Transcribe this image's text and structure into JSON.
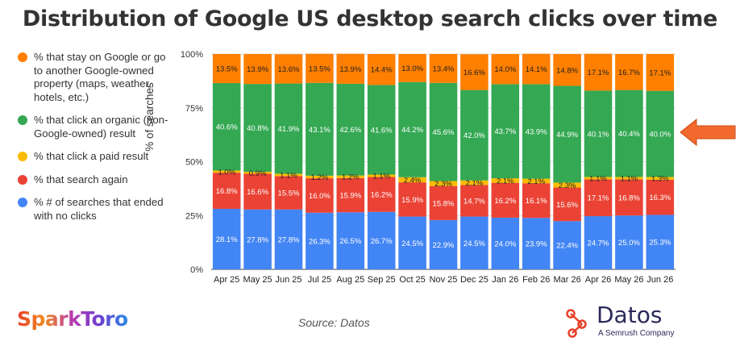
{
  "title": "Distribution of Google US desktop search clicks over time",
  "source": "Source: Datos",
  "brands": {
    "left_logo": "SparkToro",
    "right_logo": "Datos",
    "right_logo_sub": "A Semrush Company"
  },
  "legend": [
    {
      "label": "% that stay on Google or go to another Google-owned property (maps, weather, hotels, etc.)",
      "color": "#FF7F00"
    },
    {
      "label": "% that click an organic (non-Google-owned) result",
      "color": "#34A853"
    },
    {
      "label": "% that click a paid result",
      "color": "#FBBC04"
    },
    {
      "label": "% that search again",
      "color": "#EA4335"
    },
    {
      "label": "% # of searches that ended with no clicks",
      "color": "#4285F4"
    }
  ],
  "chart_data": {
    "type": "bar",
    "stacked": "percent",
    "ylabel": "% of searches",
    "ylim": [
      0,
      100
    ],
    "yticks": [
      "0%",
      "25%",
      "50%",
      "75%",
      "100%"
    ],
    "grid": true,
    "highlight": {
      "series": "% that click an organic (non-Google-owned) result",
      "marker": "orange arrow pointing at last bar"
    },
    "categories": [
      "Apr 25",
      "May 25",
      "Jun 25",
      "Jul 25",
      "Aug 25",
      "Sep 25",
      "Oct 25",
      "Nov 25",
      "Dec 25",
      "Jan 26",
      "Feb 26",
      "Mar 26",
      "Apr 26",
      "May 26",
      "Jun 26"
    ],
    "series": [
      {
        "name": "% # of searches that ended with no clicks",
        "color": "#4285F4",
        "values": [
          28.1,
          27.8,
          27.8,
          26.3,
          26.5,
          26.7,
          24.5,
          22.9,
          24.5,
          24.0,
          23.9,
          22.4,
          24.7,
          25.0,
          25.3
        ],
        "labels": [
          "28.1%",
          "27.8%",
          "27.8%",
          "26.3%",
          "26.5%",
          "26.7%",
          "24.5%",
          "22.9%",
          "24.5%",
          "24.0%",
          "23.9%",
          "22.4%",
          "24.7%",
          "25.0%",
          "25.3%"
        ]
      },
      {
        "name": "% that search again",
        "color": "#EA4335",
        "values": [
          16.8,
          16.6,
          15.5,
          16.0,
          15.9,
          16.2,
          15.9,
          15.8,
          14.7,
          16.2,
          16.1,
          15.6,
          17.1,
          16.8,
          16.3
        ],
        "labels": [
          "16.8%",
          "16.6%",
          "15.5%",
          "16.0%",
          "15.9%",
          "16.2%",
          "15.9%",
          "15.8%",
          "14.7%",
          "16.2%",
          "16.1%",
          "15.6%",
          "17.1%",
          "16.8%",
          "16.3%"
        ]
      },
      {
        "name": "% that click a paid result",
        "color": "#FBBC04",
        "values": [
          1.0,
          0.9,
          1.1,
          1.2,
          1.2,
          1.1,
          2.4,
          2.3,
          2.1,
          2.1,
          2.1,
          2.3,
          1.1,
          1.1,
          1.3
        ],
        "labels": [
          "1.0%",
          "0.9%",
          "1.1%",
          "1.2%",
          "1.2%",
          "1.1%",
          "2.4%",
          "2.3%",
          "2.1%",
          "2.1%",
          "2.1%",
          "2.3%",
          "1.1%",
          "1.1%",
          "1.3%"
        ]
      },
      {
        "name": "% that click an organic (non-Google-owned) result",
        "color": "#34A853",
        "values": [
          40.6,
          40.8,
          41.9,
          43.1,
          42.6,
          41.6,
          44.2,
          45.6,
          42.0,
          43.7,
          43.9,
          44.9,
          40.1,
          40.4,
          40.0
        ],
        "labels": [
          "40.6%",
          "40.8%",
          "41.9%",
          "43.1%",
          "42.6%",
          "41.6%",
          "44.2%",
          "45.6%",
          "42.0%",
          "43.7%",
          "43.9%",
          "44.9%",
          "40.1%",
          "40.4%",
          "40.0%"
        ]
      },
      {
        "name": "% that stay on Google or go to another Google-owned property (maps, weather, hotels, etc.)",
        "color": "#FF7F00",
        "values": [
          13.5,
          13.9,
          13.6,
          13.5,
          13.9,
          14.4,
          13.0,
          13.4,
          16.6,
          14.0,
          14.1,
          14.8,
          17.1,
          16.7,
          17.1
        ],
        "labels": [
          "13.5%",
          "13.9%",
          "13.6%",
          "13.5%",
          "13.9%",
          "14.4%",
          "13.0%",
          "13.4%",
          "16.6%",
          "14.0%",
          "14.1%",
          "14.8%",
          "17.1%",
          "16.7%",
          "17.1%"
        ]
      }
    ]
  }
}
